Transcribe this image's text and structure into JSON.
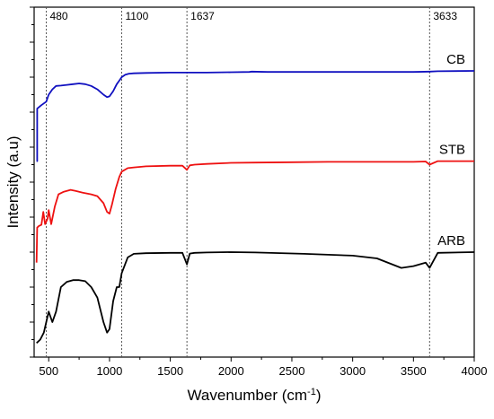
{
  "chart_data": {
    "type": "line",
    "title": "",
    "xlabel": "Wavenumber (cm",
    "xlabel_sup": "-1",
    "xlabel_tail": ")",
    "ylabel": "Intensity (a.u)",
    "xlim": [
      380,
      4000
    ],
    "ylim": [
      0,
      100
    ],
    "x_ticks": [
      500,
      1000,
      1500,
      2000,
      2500,
      3000,
      3500,
      4000
    ],
    "x_tick_labels": [
      "500",
      "1000",
      "1500",
      "2000",
      "2500",
      "3000",
      "3500",
      "4000"
    ],
    "grid": false,
    "y_tick_labels_shown": false,
    "annotations": [
      {
        "x": 480,
        "text": "480"
      },
      {
        "x": 1100,
        "text": "1100"
      },
      {
        "x": 1637,
        "text": "1637"
      },
      {
        "x": 3633,
        "text": "3633"
      }
    ],
    "series": [
      {
        "name": "CB",
        "color": "#1010c0",
        "x": [
          400,
          405,
          405,
          440,
          480,
          500,
          530,
          560,
          600,
          650,
          700,
          750,
          800,
          850,
          900,
          950,
          980,
          1000,
          1030,
          1060,
          1080,
          1100,
          1130,
          1160,
          1200,
          1300,
          1500,
          1800,
          2000,
          2150,
          2170,
          2300,
          2600,
          3000,
          3500,
          3633,
          3700,
          4000
        ],
        "y": [
          56,
          56,
          71,
          72,
          73,
          75,
          76.5,
          77.5,
          77.6,
          77.8,
          78,
          78.2,
          78,
          77.5,
          76.5,
          75,
          74.3,
          74.5,
          76,
          78,
          79,
          80,
          80.7,
          81,
          81.1,
          81.2,
          81.3,
          81.3,
          81.4,
          81.5,
          81.6,
          81.5,
          81.5,
          81.5,
          81.5,
          81.6,
          81.7,
          81.8
        ]
      },
      {
        "name": "STB",
        "color": "#ee1111",
        "x": [
          400,
          405,
          420,
          440,
          455,
          470,
          490,
          500,
          520,
          550,
          580,
          620,
          680,
          720,
          780,
          850,
          900,
          950,
          980,
          1000,
          1020,
          1050,
          1080,
          1100,
          1150,
          1200,
          1300,
          1500,
          1600,
          1637,
          1660,
          1700,
          1800,
          2000,
          2200,
          2500,
          2800,
          3200,
          3500,
          3600,
          3633,
          3700,
          4000
        ],
        "y": [
          27,
          37,
          37.5,
          37.8,
          41.5,
          38,
          39.5,
          42,
          38,
          43,
          46.5,
          47.2,
          47.8,
          47.5,
          47,
          46.5,
          46,
          44,
          41.5,
          41,
          43.5,
          48,
          51.5,
          53,
          54,
          54.2,
          54.5,
          54.7,
          54.7,
          53.5,
          54.8,
          55,
          55.2,
          55.5,
          55.6,
          55.7,
          55.8,
          55.8,
          55.8,
          55.9,
          55,
          56,
          56
        ]
      },
      {
        "name": "ARB",
        "color": "#000000",
        "x": [
          400,
          430,
          460,
          480,
          500,
          530,
          560,
          600,
          650,
          700,
          750,
          800,
          850,
          900,
          950,
          980,
          1000,
          1030,
          1060,
          1080,
          1100,
          1150,
          1200,
          1300,
          1500,
          1600,
          1637,
          1660,
          1700,
          1800,
          2000,
          2200,
          2600,
          3000,
          3200,
          3400,
          3500,
          3600,
          3633,
          3700,
          4000
        ],
        "y": [
          4,
          5,
          7,
          10,
          13,
          10,
          13,
          20,
          21.5,
          22,
          22,
          21.7,
          20,
          17,
          10,
          7,
          8,
          16,
          20,
          20,
          24,
          28.5,
          29.5,
          29.7,
          29.8,
          29.8,
          26.5,
          29.6,
          29.8,
          29.9,
          30,
          29.9,
          29.5,
          29,
          28.2,
          25.5,
          26,
          27,
          25.5,
          29.8,
          30
        ]
      }
    ]
  }
}
